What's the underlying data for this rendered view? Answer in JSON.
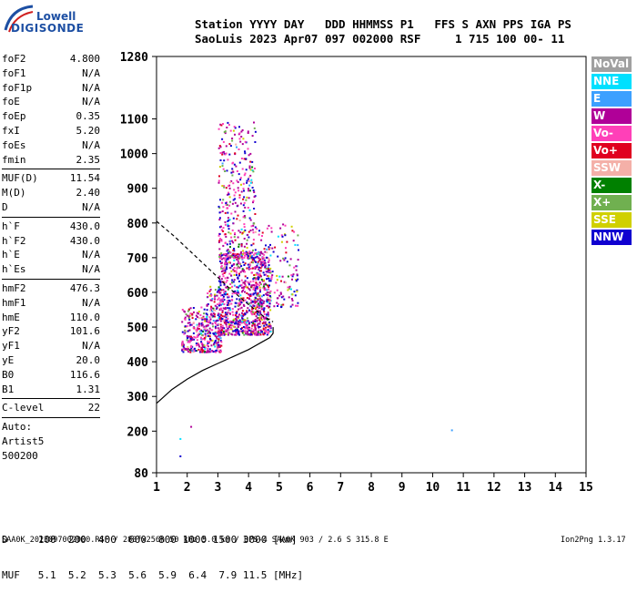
{
  "logo": {
    "line1": "Lowell",
    "line2": "DIGISONDE"
  },
  "header": {
    "line1": "Station YYYY DAY   DDD HHMMSS P1   FFS S AXN PPS IGA PS",
    "line2": "SaoLuis 2023 Apr07 097 002000 RSF     1 715 100 00- 11"
  },
  "params_groups": [
    [
      {
        "label": "foF2",
        "value": "4.800"
      },
      {
        "label": "foF1",
        "value": "N/A"
      },
      {
        "label": "foF1p",
        "value": "N/A"
      },
      {
        "label": "foE",
        "value": "N/A"
      },
      {
        "label": "foEp",
        "value": "0.35"
      },
      {
        "label": "fxI",
        "value": "5.20"
      },
      {
        "label": "foEs",
        "value": "N/A"
      },
      {
        "label": "fmin",
        "value": "2.35"
      }
    ],
    [
      {
        "label": "MUF(D)",
        "value": "11.54"
      },
      {
        "label": "M(D)",
        "value": "2.40"
      },
      {
        "label": "D",
        "value": "N/A"
      }
    ],
    [
      {
        "label": "h`F",
        "value": "430.0"
      },
      {
        "label": "h`F2",
        "value": "430.0"
      },
      {
        "label": "h`E",
        "value": "N/A"
      },
      {
        "label": "h`Es",
        "value": "N/A"
      }
    ],
    [
      {
        "label": "hmF2",
        "value": "476.3"
      },
      {
        "label": "hmF1",
        "value": "N/A"
      },
      {
        "label": "hmE",
        "value": "110.0"
      },
      {
        "label": "yF2",
        "value": "101.6"
      },
      {
        "label": "yF1",
        "value": "N/A"
      },
      {
        "label": "yE",
        "value": "20.0"
      },
      {
        "label": "B0",
        "value": "116.6"
      },
      {
        "label": "B1",
        "value": "1.31"
      }
    ],
    [
      {
        "label": "C-level",
        "value": "22"
      }
    ]
  ],
  "autoscaling": {
    "line1": "Auto:",
    "line2": "Artist5",
    "line3": "500200"
  },
  "legend": [
    {
      "label": "NoVal",
      "color": "#a0a0a0"
    },
    {
      "label": "NNE",
      "color": "#00e0ff"
    },
    {
      "label": "E",
      "color": "#3ca0ff"
    },
    {
      "label": "W",
      "color": "#b00098"
    },
    {
      "label": "Vo-",
      "color": "#ff40b8"
    },
    {
      "label": "Vo+",
      "color": "#e00020"
    },
    {
      "label": "SSW",
      "color": "#f4b0a8"
    },
    {
      "label": "X-",
      "color": "#008000"
    },
    {
      "label": "X+",
      "color": "#70b050"
    },
    {
      "label": "SSE",
      "color": "#d0d000"
    },
    {
      "label": "NNW",
      "color": "#1000d0"
    }
  ],
  "dmuf": {
    "d_row": "D     100  200  400  600  800 1000 1500 3000 [km]",
    "muf_row": "MUF   5.1  5.2  5.3  5.6  5.9  6.4  7.9 11.5 [MHz]"
  },
  "footer": {
    "left": "SAA0K_2023097002000.RSF / 280fx256h 50 kHz 5.0 km / DPS-4 SAA0K 903 / 2.6 S 315.8 E",
    "right": "Ion2Png 1.3.17"
  },
  "chart_data": {
    "type": "scatter",
    "title": "",
    "xlabel": "",
    "ylabel": "",
    "xlim": [
      1,
      15
    ],
    "ylim": [
      80,
      1280
    ],
    "x_ticks": [
      1,
      2,
      3,
      4,
      5,
      6,
      7,
      8,
      9,
      10,
      11,
      12,
      13,
      14,
      15
    ],
    "y_ticks": [
      80,
      200,
      300,
      400,
      500,
      600,
      700,
      800,
      900,
      1000,
      1100,
      1280
    ],
    "profile_solid": {
      "x": [
        1.0,
        1.5,
        2.0,
        2.5,
        3.0,
        3.5,
        4.0,
        4.4,
        4.7,
        4.8,
        4.8
      ],
      "y": [
        280,
        320,
        350,
        375,
        395,
        415,
        435,
        455,
        470,
        482,
        500
      ]
    },
    "profile_dashed": {
      "x": [
        1.0,
        1.6,
        2.2,
        2.8,
        3.4,
        4.0,
        4.5,
        4.8
      ],
      "y": [
        805,
        760,
        710,
        660,
        610,
        565,
        530,
        515
      ]
    },
    "echo_regions": [
      {
        "fmin": 1.8,
        "fmax": 2.6,
        "hmin": 430,
        "hmax": 560,
        "n": 220
      },
      {
        "fmin": 2.6,
        "fmax": 3.1,
        "hmin": 430,
        "hmax": 620,
        "n": 200
      },
      {
        "fmin": 3.0,
        "fmax": 4.7,
        "hmin": 480,
        "hmax": 720,
        "n": 900
      },
      {
        "fmin": 3.0,
        "fmax": 4.2,
        "hmin": 700,
        "hmax": 1100,
        "n": 350
      },
      {
        "fmin": 4.2,
        "fmax": 5.6,
        "hmin": 560,
        "hmax": 800,
        "n": 180
      }
    ],
    "isolated_echoes": [
      {
        "x": 10.6,
        "y": 205,
        "color": "#3ca0ff"
      },
      {
        "x": 2.1,
        "y": 215,
        "color": "#b00098"
      },
      {
        "x": 1.75,
        "y": 180,
        "color": "#00e0ff"
      },
      {
        "x": 1.75,
        "y": 130,
        "color": "#1000d0"
      }
    ]
  }
}
